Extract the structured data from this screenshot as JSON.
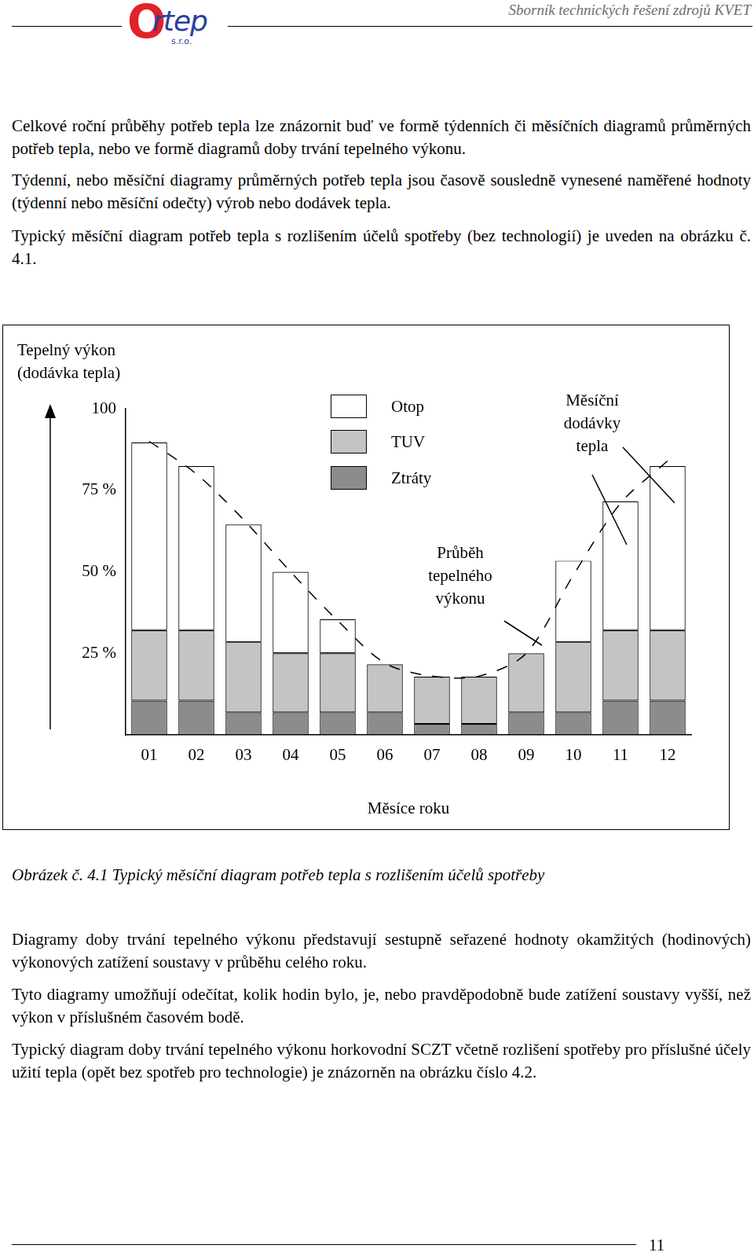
{
  "header": {
    "logo": {
      "mark": "O",
      "name": "rtep",
      "suffix": "s.r.o."
    },
    "title": "Sborník technických řešení zdrojů KVET"
  },
  "paragraphs_before": [
    "Celkové roční průběhy potřeb tepla lze znázornit buď ve formě týdenních či měsíčních diagramů průměrných potřeb tepla, nebo ve formě diagramů doby trvání tepelného výkonu.",
    "Týdenní, nebo měsíční diagramy průměrných potřeb tepla jsou časově sousledně vynesené naměřené hodnoty (týdenní nebo měsíční odečty) výrob nebo dodávek tepla.",
    "Typický měsíční diagram potřeb tepla s rozlišením účelů spotřeby (bez technologií) je uveden na obrázku č. 4.1."
  ],
  "chart_data": {
    "type": "bar",
    "y_label": [
      "Tepelný výkon",
      "(dodávka tepla)"
    ],
    "x_label": "Měsíce roku",
    "categories": [
      "01",
      "02",
      "03",
      "04",
      "05",
      "06",
      "07",
      "08",
      "09",
      "10",
      "11",
      "12"
    ],
    "series": [
      {
        "name": "Otop",
        "color": "#ffffff",
        "values": [
          57.6,
          50.3,
          36.1,
          25,
          10.5,
          0,
          0,
          0,
          0,
          25,
          39.5,
          50.3
        ]
      },
      {
        "name": "TUV",
        "color": "#c4c4c4",
        "values": [
          21.6,
          21.6,
          21.5,
          18.1,
          18.1,
          14.7,
          14.5,
          14.5,
          18.1,
          21.5,
          21.6,
          21.6
        ]
      },
      {
        "name": "Ztráty",
        "color": "#8c8c8c",
        "values": [
          10.5,
          10.5,
          6.9,
          6.9,
          6.9,
          6.9,
          3.4,
          3.4,
          6.9,
          6.9,
          10.5,
          10.5
        ]
      },
      {
        "name": "Průběh tepelného výkonu",
        "type": "line",
        "line_style": "dashed",
        "color": "#000000",
        "values": [
          90,
          80,
          66,
          50,
          35,
          22,
          18,
          18,
          25,
          49,
          71,
          84
        ]
      }
    ],
    "annotations": [
      "Měsíční dodávky tepla"
    ],
    "stacked": true,
    "grid": false,
    "legend": "top",
    "ylim": [
      0,
      100
    ],
    "yticks": [
      {
        "value": 25,
        "label": "25 %"
      },
      {
        "value": 50,
        "label": "50 %"
      },
      {
        "value": 75,
        "label": "75 %"
      },
      100
    ]
  },
  "caption": "Obrázek č. 4.1 Typický měsíční diagram potřeb tepla s rozlišením účelů spotřeby",
  "paragraphs_after": [
    "Diagramy doby trvání tepelného výkonu představují sestupně seřazené hodnoty okamžitých (hodinových) výkonových zatížení soustavy v průběhu celého roku.",
    "Tyto diagramy umožňují odečítat, kolik hodin bylo, je, nebo pravděpodobně bude zatížení soustavy vyšší, než výkon v příslušném časovém bodě.",
    "Typický diagram doby trvání tepelného výkonu horkovodní SCZT včetně rozlišení spotřeby pro příslušné účely užití tepla (opět bez spotřeb pro technologie) je znázorněn na obrázku číslo 4.2."
  ],
  "footer": {
    "page": "11"
  }
}
